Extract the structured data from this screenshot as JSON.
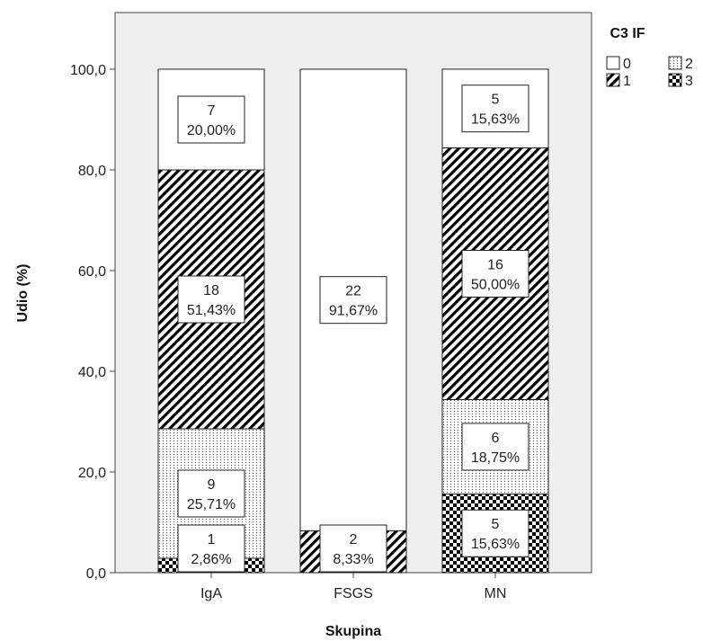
{
  "chart_data": {
    "type": "bar",
    "stacked": true,
    "xlabel": "Skupina",
    "ylabel": "Udio (%)",
    "ylim": [
      0,
      100
    ],
    "yticks": [
      "0,0",
      "20,0",
      "40,0",
      "60,0",
      "80,0",
      "100,0"
    ],
    "yticks_values": [
      0,
      20,
      40,
      60,
      80,
      100
    ],
    "categories": [
      "IgA",
      "FSGS",
      "MN"
    ],
    "legend": {
      "title": "C3 IF",
      "placement": "top-right",
      "entries": [
        "0",
        "2",
        "1",
        "3"
      ]
    },
    "series": [
      {
        "name": "3",
        "pattern": "checker",
        "values": [
          2.86,
          0,
          15.63
        ],
        "counts": [
          "1",
          "",
          "5"
        ],
        "labels": [
          "2,86%",
          "",
          "15,63%"
        ]
      },
      {
        "name": "1",
        "pattern": "hatch",
        "values": [
          0,
          8.33,
          0
        ],
        "counts": [
          "",
          "2",
          ""
        ],
        "labels": [
          "",
          "8,33%",
          ""
        ]
      },
      {
        "name": "2",
        "pattern": "dots",
        "values": [
          25.71,
          0,
          18.75
        ],
        "counts": [
          "9",
          "",
          "6"
        ],
        "labels": [
          "25,71%",
          "",
          "18,75%"
        ]
      },
      {
        "name": "1",
        "pattern": "hatch",
        "values": [
          51.43,
          0,
          50.0
        ],
        "counts": [
          "18",
          "",
          "16"
        ],
        "labels": [
          "51,43%",
          "",
          "50,00%"
        ]
      },
      {
        "name": "0",
        "pattern": "blank",
        "values": [
          20.0,
          91.67,
          15.63
        ],
        "counts": [
          "7",
          "22",
          "5"
        ],
        "labels": [
          "20,00%",
          "91,67%",
          "15,63%"
        ]
      }
    ],
    "grid": false,
    "colors": {
      "plot_background": "#efefef",
      "bar_fill": "#ffffff",
      "pattern_ink": "#000000"
    }
  }
}
